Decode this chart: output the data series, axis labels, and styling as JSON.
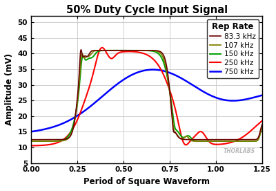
{
  "title": "50% Duty Cycle Input Signal",
  "xlabel": "Period of Square Waveform",
  "ylabel": "Amplitude (mV)",
  "xlim": [
    0.0,
    1.25
  ],
  "ylim": [
    5,
    52
  ],
  "yticks": [
    5,
    10,
    15,
    20,
    25,
    30,
    35,
    40,
    45,
    50
  ],
  "xticks": [
    0.0,
    0.25,
    0.5,
    0.75,
    1.0,
    1.25
  ],
  "legend_title": "Rep Rate",
  "series": [
    {
      "label": "83.3 kHz",
      "color": "#6b0000"
    },
    {
      "label": "107 kHz",
      "color": "#808000"
    },
    {
      "label": "150 kHz",
      "color": "#00a000"
    },
    {
      "label": "250 kHz",
      "color": "#ff0000"
    },
    {
      "label": "750 kHz",
      "color": "#0000ff"
    }
  ],
  "background_color": "#ffffff",
  "grid_color": "#c8c8c8",
  "watermark": "THORLABS"
}
